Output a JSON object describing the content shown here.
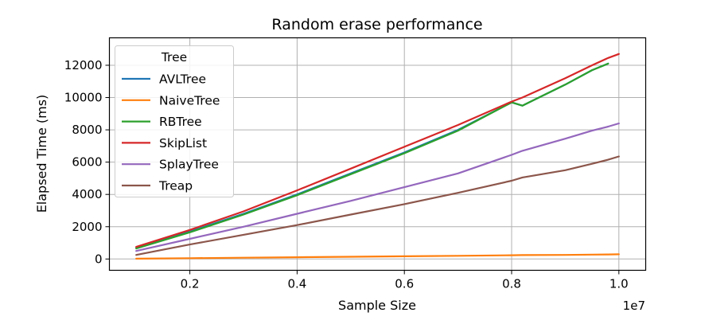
{
  "chart_data": {
    "type": "line",
    "title": "Random erase performance",
    "xlabel": "Sample Size",
    "ylabel": "Elapsed Time (ms)",
    "x_offset_label": "1e7",
    "xlim": [
      0.05,
      1.05
    ],
    "ylim": [
      -700,
      13700
    ],
    "xticks": [
      0.2,
      0.4,
      0.6,
      0.8,
      1.0
    ],
    "xtick_labels": [
      "0.2",
      "0.4",
      "0.6",
      "0.8",
      "1.0"
    ],
    "yticks": [
      0,
      2000,
      4000,
      6000,
      8000,
      10000,
      12000
    ],
    "ytick_labels": [
      "0",
      "2000",
      "4000",
      "6000",
      "8000",
      "10000",
      "12000"
    ],
    "grid": true,
    "legend": {
      "title": "Tree",
      "position": "top-left"
    },
    "x": [
      0.1,
      0.2,
      0.3,
      0.4,
      0.5,
      0.6,
      0.7,
      0.8,
      0.82,
      0.9,
      0.95,
      0.98,
      1.0
    ],
    "series": [
      {
        "name": "AVLTree",
        "color": "#1f77b4",
        "values": [
          700,
          1700,
          2800,
          4000,
          5300,
          6600,
          8000,
          9700,
          9500,
          10800,
          11700,
          12100,
          null
        ]
      },
      {
        "name": "NaiveTree",
        "color": "#ff7f0e",
        "values": [
          20,
          50,
          80,
          110,
          140,
          170,
          200,
          230,
          240,
          250,
          270,
          280,
          290
        ]
      },
      {
        "name": "RBTree",
        "color": "#2ca02c",
        "values": [
          650,
          1650,
          2750,
          3950,
          5250,
          6550,
          7950,
          9700,
          9500,
          10800,
          11700,
          12100,
          null
        ]
      },
      {
        "name": "SkipList",
        "color": "#d62728",
        "values": [
          750,
          1800,
          2950,
          4250,
          5600,
          6950,
          8300,
          9750,
          10000,
          11200,
          12000,
          12450,
          12700
        ]
      },
      {
        "name": "SplayTree",
        "color": "#9467bd",
        "values": [
          500,
          1250,
          2000,
          2800,
          3600,
          4450,
          5300,
          6450,
          6700,
          7450,
          7950,
          8200,
          8400
        ]
      },
      {
        "name": "Treap",
        "color": "#8c564b",
        "values": [
          250,
          900,
          1500,
          2100,
          2750,
          3400,
          4100,
          4850,
          5050,
          5500,
          5900,
          6150,
          6350
        ]
      }
    ]
  }
}
